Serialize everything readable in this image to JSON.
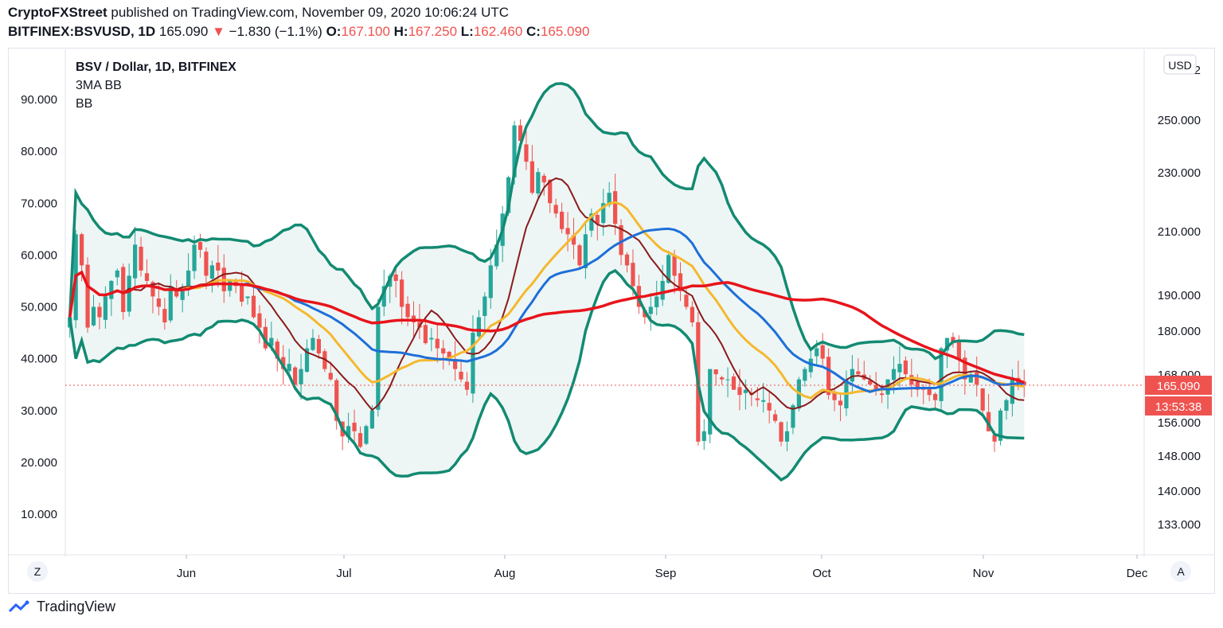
{
  "header": {
    "author": "CryptoFXStreet",
    "published_text": "published on TradingView.com, November 09, 2020 10:06:24 UTC",
    "symbol": "BITFINEX:BSVUSD, 1D",
    "last": "165.090",
    "arrow": "▼",
    "change": "−1.830 (−1.1%)",
    "o_label": "O:",
    "o_value": "167.100",
    "h_label": "H:",
    "h_value": "167.250",
    "l_label": "L:",
    "l_value": "162.460",
    "c_label": "C:",
    "c_value": "165.090"
  },
  "legend": {
    "title": "BSV / Dollar, 1D, BITFINEX",
    "ind1": "3MA BB",
    "ind2": "BB"
  },
  "currency_button": "USD",
  "price_tag": "165.090",
  "countdown_tag": "13:53:38",
  "left_scale_button": "Z",
  "auto_button": "A",
  "footer_brand": "TradingView",
  "colors": {
    "up": "#26a69a",
    "down": "#ef5350",
    "bb_band": "#138a72",
    "bb_fill": "#e8f4f2",
    "ma_short": "#8b1a1a",
    "ma_mid": "#f5b82e",
    "ma_blue": "#1e6fd9",
    "ma_red": "#e8141b"
  },
  "chart_data": {
    "type": "candlestick",
    "x_ticks": [
      "Jun",
      "Jul",
      "Aug",
      "Sep",
      "Oct",
      "Nov",
      "Dec"
    ],
    "left_axis": {
      "ticks": [
        "90.000",
        "80.000",
        "70.000",
        "60.000",
        "50.000",
        "40.000",
        "30.000",
        "20.000",
        "10.000"
      ]
    },
    "right_axis": {
      "ticks": [
        "2",
        "250.000",
        "230.000",
        "210.000",
        "190.000",
        "180.000",
        "168.000",
        "156.000",
        "148.000",
        "140.000",
        "133.000"
      ]
    },
    "last_price": 165.09,
    "series": [
      {
        "name": "3MA BB",
        "kind": "moving averages"
      },
      {
        "name": "BB",
        "kind": "bollinger bands"
      }
    ],
    "ohlc_note": "approximate daily closes in left-axis units, mid-May to early Nov 2020",
    "closes": [
      48,
      64,
      58,
      46,
      50,
      48,
      52,
      55,
      57,
      49,
      56,
      62,
      57,
      55,
      52,
      50,
      47,
      54,
      52,
      53,
      57,
      62,
      61,
      56,
      58,
      57,
      53,
      55,
      54,
      51,
      52,
      48,
      46,
      42,
      44,
      40,
      38,
      39,
      35,
      38,
      42,
      44,
      41,
      38,
      36,
      28,
      25,
      27,
      26,
      23,
      27,
      30,
      50,
      54,
      56,
      55,
      50,
      48,
      47,
      46,
      43,
      44,
      42,
      41,
      40,
      38,
      36,
      34,
      45,
      48,
      52,
      58,
      62,
      68,
      75,
      85,
      82,
      78,
      72,
      76,
      74,
      70,
      68,
      65,
      64,
      62,
      58,
      64,
      68,
      66,
      70,
      72,
      66,
      60,
      58,
      54,
      50,
      48,
      50,
      52,
      55,
      60,
      56,
      53,
      50,
      47,
      24,
      26,
      38,
      37,
      36,
      36,
      34,
      33,
      34,
      33,
      32,
      32,
      30,
      28,
      24,
      26,
      31,
      36,
      38,
      40,
      42,
      40,
      33,
      32,
      31,
      36,
      38,
      37,
      36,
      35,
      34,
      33,
      36,
      38,
      39,
      37,
      35,
      34,
      34,
      33,
      32,
      42,
      44,
      43,
      40,
      36,
      37,
      35,
      30,
      26,
      24,
      30,
      32,
      36,
      35,
      35
    ]
  }
}
